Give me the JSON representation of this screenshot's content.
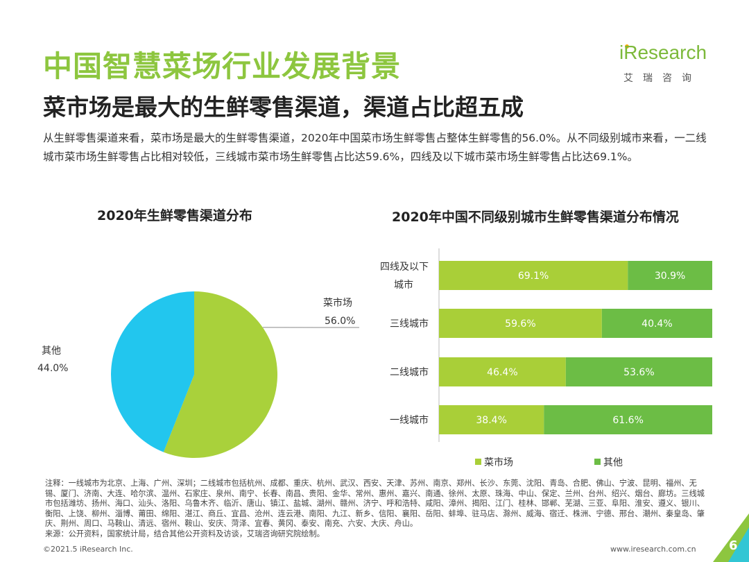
{
  "title": "中国智慧菜场行业发展背景",
  "subtitle": "菜市场是最大的生鲜零售渠道，渠道占比超五成",
  "paragraph": "从生鲜零售渠道来看，菜市场是最大的生鲜零售渠道，2020年中国菜市场生鲜零售占整体生鲜零售的56.0%。从不同级别城市来看，一二线城市菜市场生鲜零售占比相对较低，三线城市菜市场生鲜零售占比达59.6%，四线及以下城市菜市场生鲜零售占比达69.1%。",
  "logo": {
    "brand": "iResearch",
    "cn": "艾瑞咨询"
  },
  "colors": {
    "green": "#8dc63f",
    "light_green": "#a9cf38",
    "dark_green": "#6cbd45",
    "blue": "#22c6ee",
    "pie_green": "#a9d13b"
  },
  "chart_data": [
    {
      "type": "pie",
      "title": "2020年生鲜零售渠道分布",
      "slices": [
        {
          "name": "菜市场",
          "value": 56.0,
          "label": "56.0%"
        },
        {
          "name": "其他",
          "value": 44.0,
          "label": "44.0%"
        }
      ]
    },
    {
      "type": "bar",
      "orientation": "horizontal",
      "stacked": true,
      "title": "2020年中国不同级别城市生鲜零售渠道分布情况",
      "categories": [
        "四线及以下城市",
        "三线城市",
        "二线城市",
        "一线城市"
      ],
      "category_lines": [
        [
          "四线及以下",
          "城市"
        ],
        [
          "三线城市"
        ],
        [
          "二线城市"
        ],
        [
          "一线城市"
        ]
      ],
      "series": [
        {
          "name": "菜市场",
          "values": [
            69.1,
            59.6,
            46.4,
            38.4
          ],
          "labels": [
            "69.1%",
            "59.6%",
            "46.4%",
            "38.4%"
          ]
        },
        {
          "name": "其他",
          "values": [
            30.9,
            40.4,
            53.6,
            61.6
          ],
          "labels": [
            "30.9%",
            "40.4%",
            "53.6%",
            "61.6%"
          ]
        }
      ],
      "xlim": [
        0,
        100
      ],
      "legend": "bottom"
    }
  ],
  "notes": "注释：一线城市为北京、上海、广州、深圳；二线城市包括杭州、成都、重庆、杭州、武汉、西安、天津、苏州、南京、郑州、长沙、东莞、沈阳、青岛、合肥、佛山、宁波、昆明、福州、无锡、厦门、济南、大连、哈尔滨、温州、石家庄、泉州、南宁、长春、南昌、贵阳、金华、常州、惠州、嘉兴、南通、徐州、太原、珠海、中山、保定、兰州、台州、绍兴、烟台、廊坊。三线城市包括潍坊、扬州、海口、汕头、洛阳、乌鲁木齐、临沂、唐山、镇江、盐城、湖州、赣州、济宁、呼和浩特、咸阳、漳州、揭阳、江门、桂林、邯郸、芜湖、三亚、阜阳、淮安、遵义、银川、衡阳、上饶、柳州、淄博、莆田、绵阳、湛江、商丘、宜昌、沧州、连云港、南阳、九江、新乡、信阳、襄阳、岳阳、蚌埠、驻马店、滁州、威海、宿迁、株洲、宁德、邢台、潮州、秦皇岛、肇庆、荆州、周口、马鞍山、清远、宿州、鞍山、安庆、菏泽、宜春、黄冈、泰安、南充、六安、大庆、舟山。",
  "source": "来源：公开资料，国家统计局，结合其他公开资料及访谈，艾瑞咨询研究院绘制。",
  "footer": {
    "copyright": "©2021.5 iResearch Inc.",
    "website": "www.iresearch.com.cn",
    "page": "6"
  }
}
